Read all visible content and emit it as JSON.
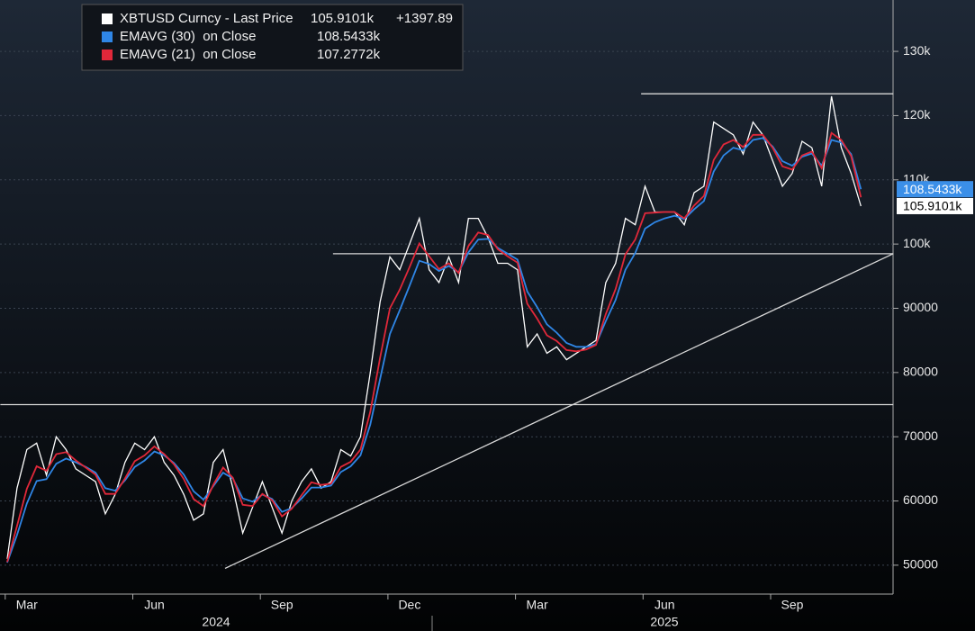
{
  "chart_data": {
    "type": "line",
    "categories": [
      null,
      null,
      "Mar",
      null,
      null,
      null,
      null,
      null,
      null,
      null,
      null,
      null,
      null,
      null,
      null,
      "Jun",
      null,
      null,
      null,
      null,
      null,
      null,
      null,
      null,
      null,
      null,
      null,
      null,
      "Sep",
      null,
      null,
      null,
      null,
      null,
      null,
      null,
      null,
      null,
      null,
      null,
      null,
      "Dec",
      null,
      null,
      null,
      null,
      null,
      null,
      null,
      null,
      null,
      null,
      null,
      null,
      "Mar",
      null,
      null,
      null,
      null,
      null,
      null,
      null,
      null,
      null,
      null,
      null,
      null,
      "Jun",
      null,
      null,
      null,
      null,
      null,
      null,
      null,
      null,
      null,
      null,
      null,
      null,
      "Sep",
      null,
      null,
      null,
      null,
      null,
      null,
      null
    ],
    "year_labels": [
      "2024",
      "2025"
    ],
    "series": [
      {
        "name": "XBTUSD Curncy - Last Price",
        "color": "#ffffff",
        "last_label": "105.9101k",
        "change_label": "+1397.89",
        "values": [
          51000,
          62000,
          68000,
          69000,
          64000,
          70000,
          68000,
          65000,
          64000,
          63000,
          58000,
          61000,
          66000,
          69000,
          68000,
          70000,
          66000,
          64000,
          61000,
          57000,
          58000,
          66000,
          68000,
          62000,
          55000,
          59000,
          63000,
          59000,
          55000,
          60000,
          63000,
          65000,
          62000,
          63000,
          68000,
          67000,
          70000,
          80000,
          91000,
          98000,
          96000,
          100000,
          104000,
          96000,
          94000,
          98000,
          94000,
          104000,
          104000,
          101000,
          97000,
          97000,
          96000,
          84000,
          86000,
          83000,
          84000,
          82000,
          83000,
          84000,
          85000,
          94000,
          97000,
          104000,
          103000,
          109000,
          105000,
          105000,
          105000,
          103000,
          108000,
          109000,
          119000,
          118000,
          117000,
          114000,
          119000,
          117000,
          113000,
          109000,
          111000,
          116000,
          115000,
          109000,
          123000,
          115000,
          111000,
          105910.1
        ]
      },
      {
        "name": "EMAVG (30)  on Close",
        "color": "#2f86e6",
        "last_label": "108.5433k",
        "values": [
          50400,
          54700,
          59600,
          63100,
          63400,
          65800,
          66600,
          66000,
          65300,
          64400,
          62000,
          61600,
          63200,
          65300,
          66300,
          67700,
          67100,
          65900,
          64100,
          61500,
          60200,
          62300,
          64400,
          63500,
          60400,
          59900,
          61000,
          60300,
          58300,
          58900,
          60400,
          62100,
          62100,
          62400,
          64500,
          65400,
          67100,
          71900,
          79000,
          86000,
          89700,
          93500,
          97400,
          96900,
          95800,
          96600,
          95600,
          98700,
          100700,
          100800,
          99400,
          98500,
          97600,
          92600,
          90200,
          87500,
          86200,
          84600,
          84000,
          84000,
          84400,
          88000,
          91300,
          96000,
          98600,
          102400,
          103400,
          104000,
          104400,
          103900,
          105400,
          106700,
          111300,
          113800,
          115000,
          114600,
          116200,
          116500,
          115200,
          112900,
          112200,
          113600,
          114100,
          112200,
          116200,
          115800,
          114000,
          108543.3
        ]
      },
      {
        "name": "EMAVG (21)  on Close",
        "color": "#e0283a",
        "last_label": "107.2772k",
        "values": [
          50500,
          56100,
          61900,
          65400,
          64700,
          67300,
          67600,
          66300,
          65200,
          64100,
          61100,
          61100,
          63500,
          66200,
          67100,
          68500,
          67300,
          65700,
          63400,
          60300,
          59200,
          62500,
          65200,
          63600,
          59400,
          59200,
          61100,
          60100,
          57600,
          58800,
          60900,
          62900,
          62500,
          62700,
          65300,
          66100,
          68000,
          73900,
          82300,
          90000,
          92900,
          96400,
          100100,
          98100,
          96100,
          97000,
          95500,
          99700,
          101800,
          101400,
          99200,
          98100,
          97100,
          90700,
          88400,
          85800,
          84900,
          83500,
          83300,
          83600,
          84300,
          89100,
          93000,
          98400,
          100700,
          104800,
          104900,
          105000,
          105000,
          104000,
          106000,
          107500,
          113100,
          115500,
          116200,
          115100,
          117000,
          117000,
          115000,
          112100,
          111600,
          113800,
          114400,
          111800,
          117300,
          116200,
          113700,
          107277.2
        ]
      }
    ],
    "lines": [
      {
        "x": [
          -0.7,
          90.3
        ],
        "y": [
          75000,
          75000
        ]
      },
      {
        "x": [
          33.2,
          90.3
        ],
        "y": [
          98500,
          98500
        ]
      },
      {
        "x": [
          64.6,
          90.3
        ],
        "y": [
          123400,
          123400
        ]
      },
      {
        "x": [
          22.2,
          90.3
        ],
        "y": [
          49500,
          98500
        ]
      }
    ],
    "ylim": [
      45500,
      138000
    ],
    "yticks": [
      50000,
      60000,
      70000,
      80000,
      90000,
      {
        "value": 100000,
        "label": "100k"
      },
      {
        "value": 110000,
        "label": "110k"
      },
      {
        "value": 120000,
        "label": "120k"
      },
      {
        "value": 130000,
        "label": "130k"
      }
    ],
    "grid": true
  }
}
